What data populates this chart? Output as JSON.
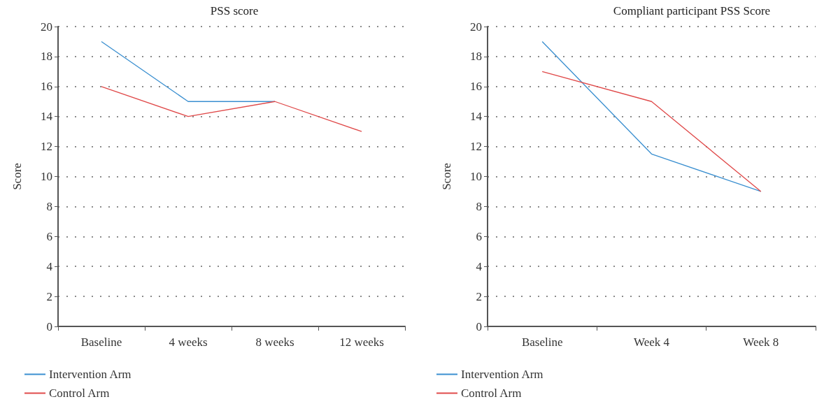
{
  "chart_data": [
    {
      "type": "line",
      "title": "PSS score",
      "ylabel": "Score",
      "categories": [
        "Baseline",
        "4 weeks",
        "8 weeks",
        "12 weeks"
      ],
      "series": [
        {
          "name": "Intervention Arm",
          "color": "#3a8fd0",
          "values": [
            19,
            15,
            15,
            null
          ]
        },
        {
          "name": "Control Arm",
          "color": "#e04a4a",
          "values": [
            16,
            14,
            15,
            13
          ]
        }
      ],
      "ylim": [
        0,
        20
      ],
      "yticks": [
        0,
        2,
        4,
        6,
        8,
        10,
        12,
        14,
        16,
        18,
        20
      ],
      "grid": "y",
      "legend": "bottom left",
      "marker": "none",
      "line_style": "solid"
    },
    {
      "type": "line",
      "title": "Compliant participant PSS Score",
      "ylabel": "Score",
      "categories": [
        "Baseline",
        "Week 4",
        "Week 8"
      ],
      "series": [
        {
          "name": "Intervention Arm",
          "color": "#3a8fd0",
          "values": [
            19,
            11.5,
            9
          ]
        },
        {
          "name": "Control Arm",
          "color": "#e04a4a",
          "values": [
            17,
            15,
            9
          ]
        }
      ],
      "ylim": [
        0,
        20
      ],
      "yticks": [
        0,
        2,
        4,
        6,
        8,
        10,
        12,
        14,
        16,
        18,
        20
      ],
      "grid": "y",
      "legend": "bottom left",
      "marker": "none",
      "line_style": "solid"
    }
  ]
}
